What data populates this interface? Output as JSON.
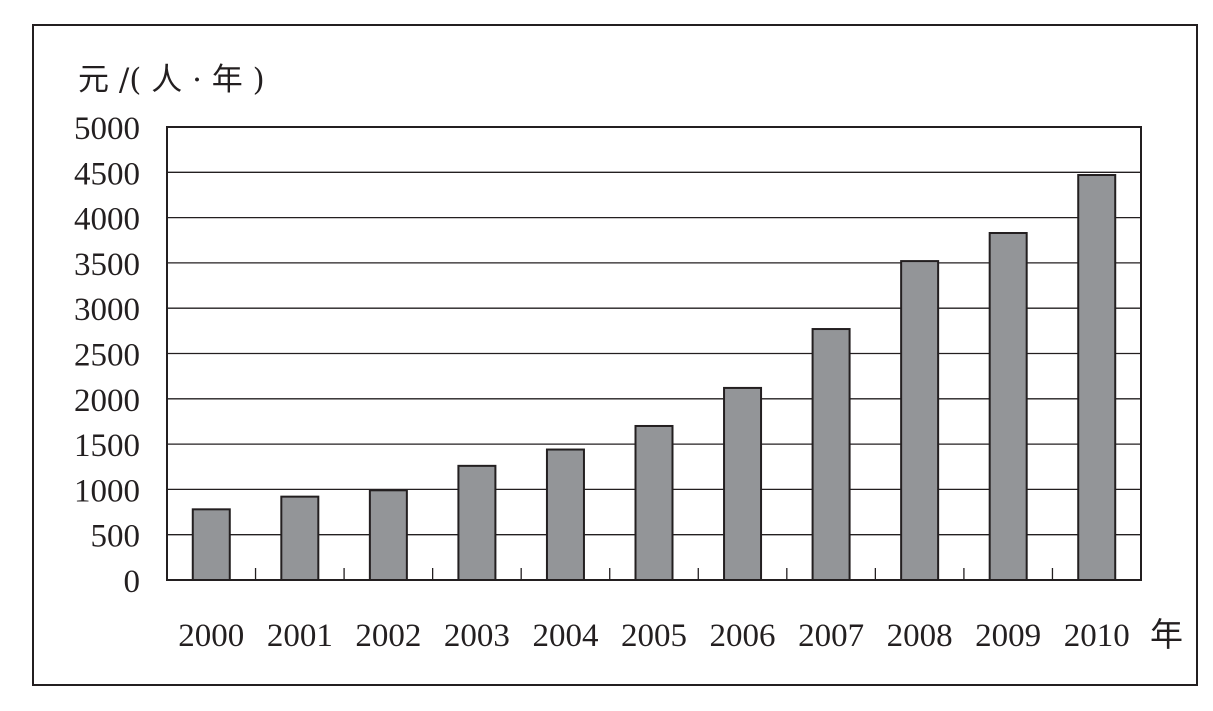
{
  "chart_data": {
    "type": "bar",
    "title": "",
    "ylabel": "元 /( 人 · 年 )",
    "xlabel": "年",
    "categories": [
      "2000",
      "2001",
      "2002",
      "2003",
      "2004",
      "2005",
      "2006",
      "2007",
      "2008",
      "2009",
      "2010"
    ],
    "values": [
      780,
      920,
      990,
      1260,
      1440,
      1700,
      2120,
      2770,
      3520,
      3830,
      4470
    ],
    "ylim": [
      0,
      5000
    ],
    "yticks": [
      0,
      500,
      1000,
      1500,
      2000,
      2500,
      3000,
      3500,
      4000,
      4500,
      5000
    ],
    "grid": true,
    "legend": "none",
    "colors": {
      "bar": "#939598",
      "edge": "#231f20",
      "grid": "#231f20"
    }
  }
}
